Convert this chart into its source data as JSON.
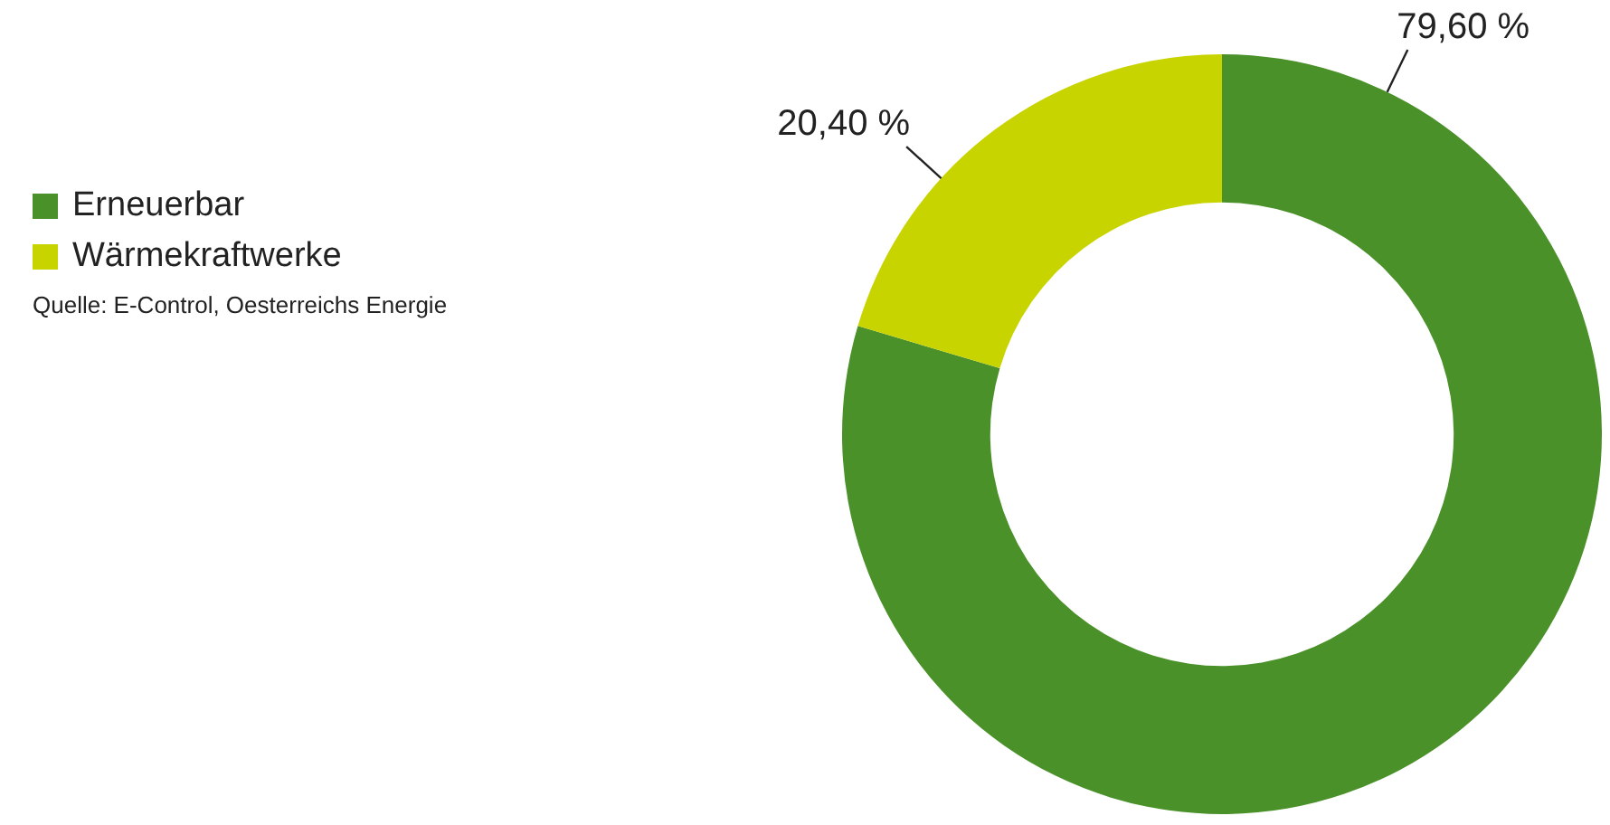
{
  "chart_data": {
    "type": "donut",
    "categories": [
      "Erneuerbar",
      "Wärmekraftwerke"
    ],
    "values": [
      79.6,
      20.4
    ],
    "colors": [
      "#4a9129",
      "#c8d400"
    ],
    "value_labels": [
      "79,60 %",
      "20,40 %"
    ],
    "legend": "left",
    "annotations": [
      "Quelle: E-Control, Oesterreichs Energie"
    ]
  }
}
